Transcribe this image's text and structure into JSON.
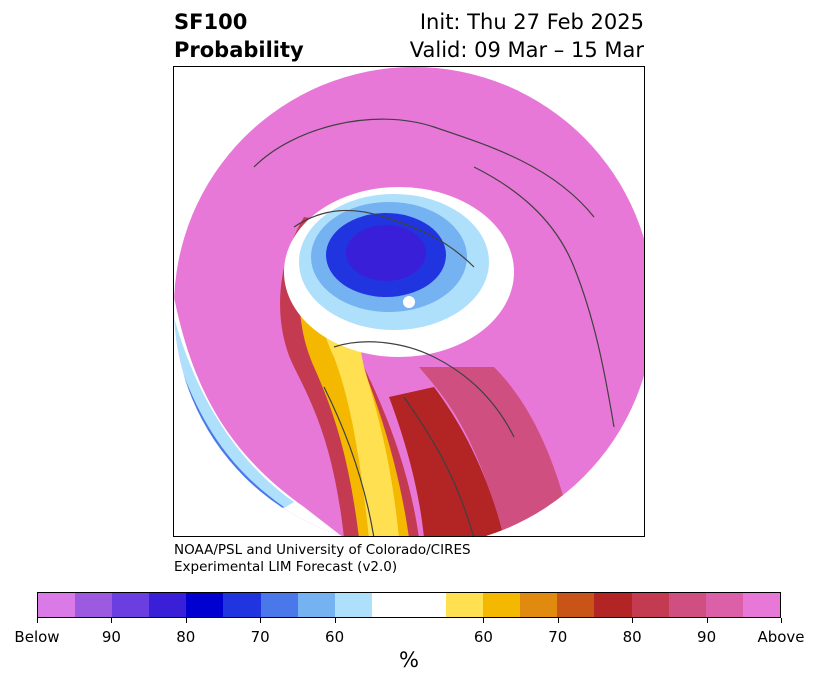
{
  "header": {
    "title_line1": "SF100",
    "title_line2": "Probability",
    "init_text": "Init: Thu 27 Feb 2025",
    "valid_text": "Valid: 09 Mar – 15 Mar"
  },
  "credit": {
    "line1": "NOAA/PSL and University of Colorado/CIRES",
    "line2": "Experimental LIM Forecast (v2.0)"
  },
  "colorbar": {
    "colors": [
      "#d97ae6",
      "#9b5ae0",
      "#6a3ee0",
      "#3a1fd9",
      "#0000d0",
      "#2035e0",
      "#4a78ea",
      "#74b2f2",
      "#aee0fb",
      "#ffffff",
      "#ffffff",
      "#ffe050",
      "#f4b800",
      "#e08a10",
      "#c85418",
      "#b32424",
      "#c43a50",
      "#cf5080",
      "#dc60a8",
      "#e878d8"
    ],
    "tick_labels": [
      "Below",
      "90",
      "80",
      "70",
      "60",
      "60",
      "70",
      "80",
      "90",
      "Above"
    ],
    "unit_label": "%"
  },
  "map": {
    "projection": "north polar stereographic",
    "features": [
      "coastlines",
      "country borders",
      "US state borders"
    ],
    "regions": [
      {
        "area": "Pacific / Eurasia / Arctic",
        "category": "Above",
        "color": "#e878d8"
      },
      {
        "area": "Northern Canada (Hudson Bay region)",
        "category": "Below",
        "color": "#3a1fd9"
      },
      {
        "area": "Central North America",
        "category": "Above (60-70%)",
        "color": "#f4b800"
      },
      {
        "area": "Eastern United States",
        "category": "Above (80-90%)",
        "color": "#cf5080"
      },
      {
        "area": "Eastern Pacific arc",
        "category": "Below",
        "color": "#0000d0"
      }
    ]
  }
}
